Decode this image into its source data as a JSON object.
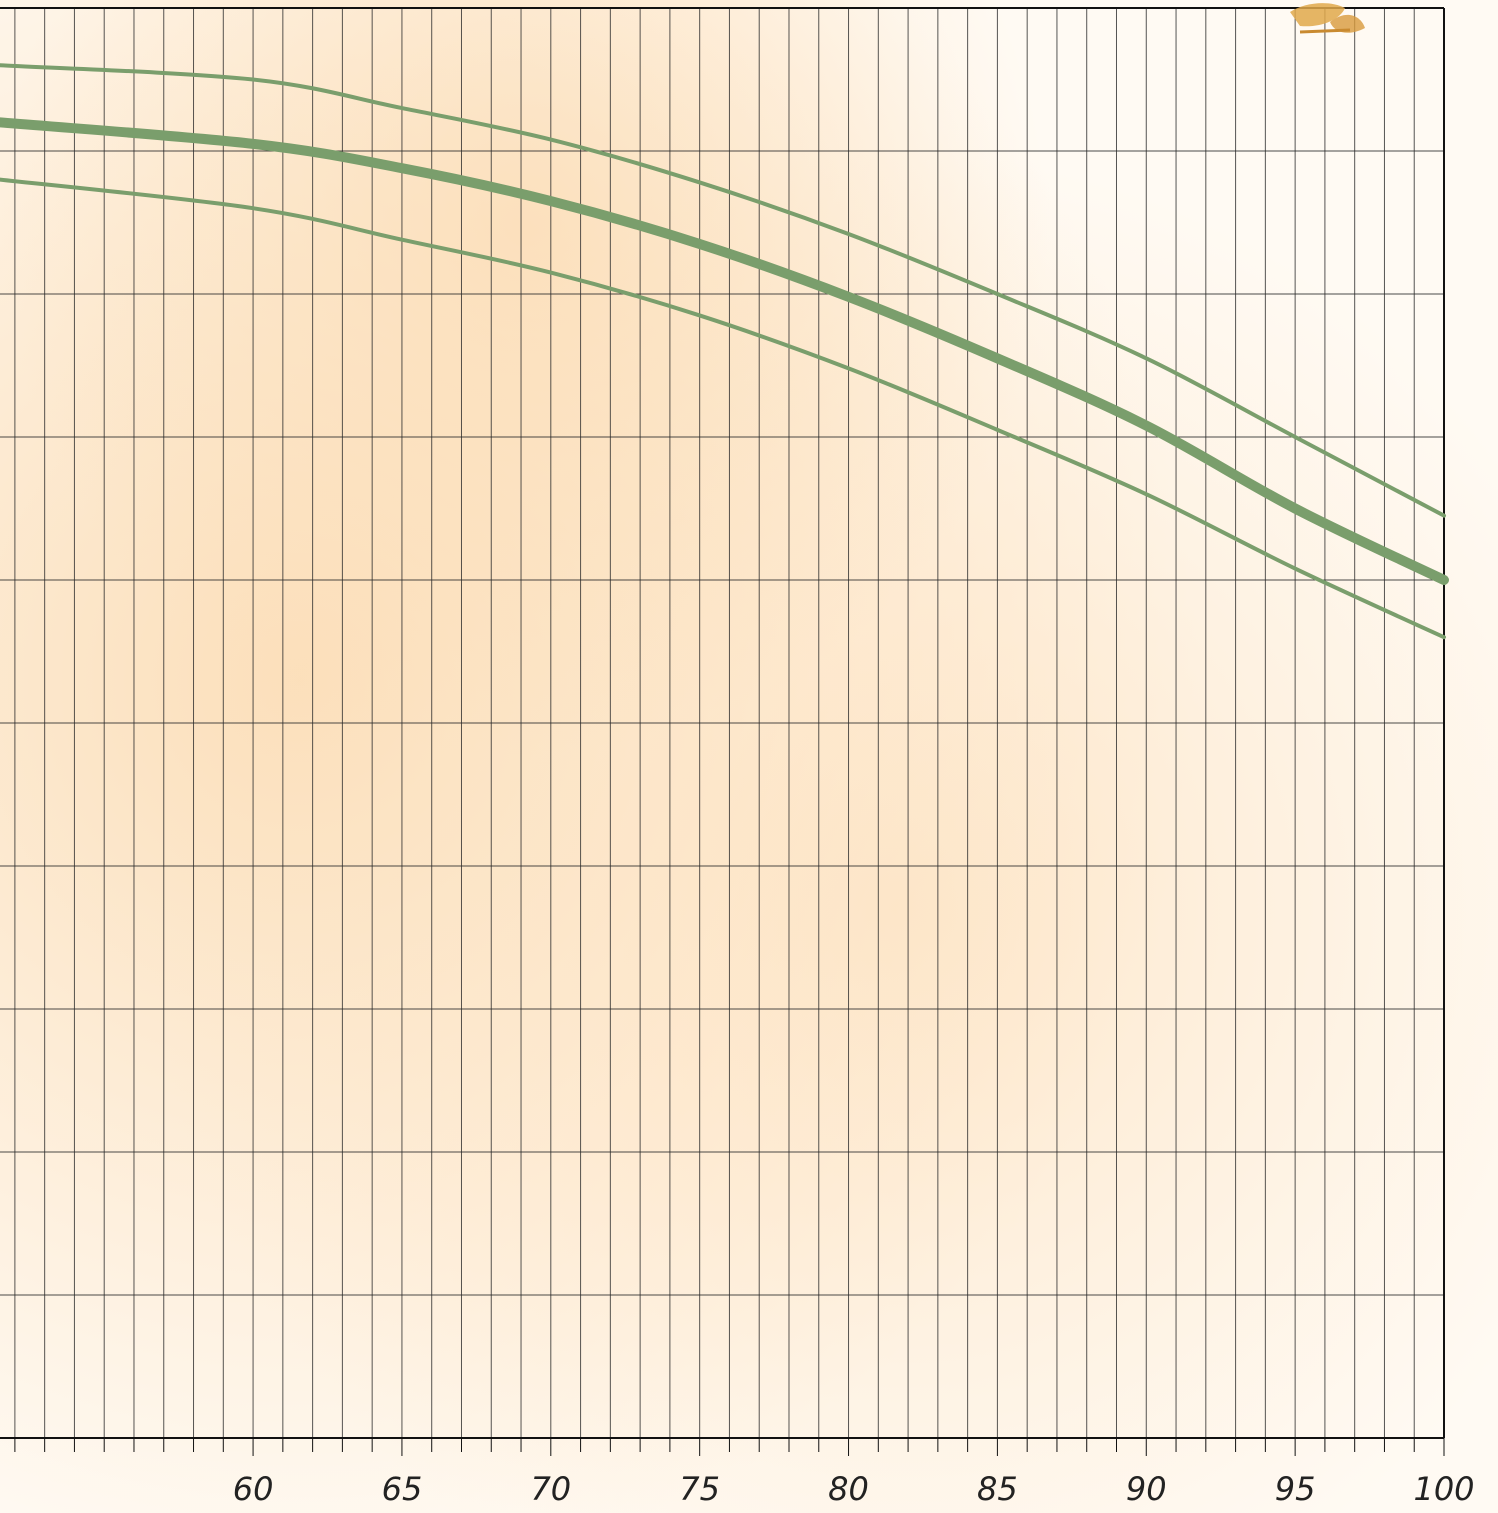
{
  "chart_data": {
    "type": "line",
    "title": "",
    "xlabel": "",
    "ylabel": "",
    "xlim": [
      51.5,
      100
    ],
    "ylim": [
      0,
      10
    ],
    "x_ticks": [
      60,
      65,
      70,
      75,
      80,
      85,
      90,
      95,
      100
    ],
    "x_tick_labels": [
      "60",
      "65",
      "70",
      "75",
      "80",
      "85",
      "90",
      "95",
      "100"
    ],
    "x_minor_step": 1,
    "y_grid_step": 1,
    "y_ticks_labeled": false,
    "grid": true,
    "legend": "none",
    "series": [
      {
        "role": "center",
        "x": [
          51.5,
          60,
          65,
          70,
          75,
          80,
          85,
          90,
          95,
          100
        ],
        "y": [
          9.2,
          9.05,
          8.88,
          8.65,
          8.35,
          7.98,
          7.55,
          7.08,
          6.5,
          6.0
        ]
      },
      {
        "role": "upper",
        "x": [
          51.5,
          60,
          65,
          70,
          75,
          80,
          85,
          90,
          95,
          100
        ],
        "y": [
          9.6,
          9.5,
          9.3,
          9.08,
          8.78,
          8.42,
          8.0,
          7.55,
          7.0,
          6.45
        ]
      },
      {
        "role": "lower",
        "x": [
          51.5,
          60,
          65,
          70,
          75,
          80,
          85,
          90,
          95,
          100
        ],
        "y": [
          8.8,
          8.6,
          8.38,
          8.15,
          7.85,
          7.48,
          7.05,
          6.6,
          6.08,
          5.6
        ]
      }
    ],
    "colors": {
      "line": "#7a9e6c",
      "grid": "#2a2a2a",
      "axis": "#111111",
      "background": "#fdecd6",
      "background_light": "#fffaf3"
    }
  }
}
